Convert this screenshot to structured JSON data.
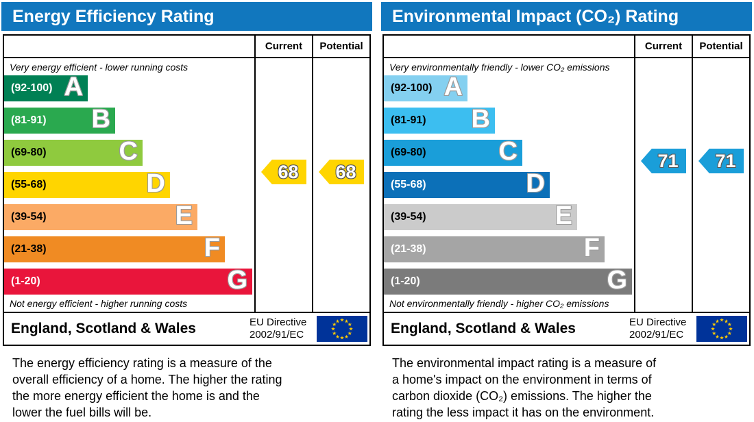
{
  "colors": {
    "header_blue": "#1177be",
    "eu_flag_blue": "#003399",
    "eu_star_yellow": "#ffcc00",
    "border_black": "#000000"
  },
  "panels": [
    {
      "title": "Energy Efficiency Rating",
      "header": {
        "current": "Current",
        "potential": "Potential"
      },
      "top_caption": "Very energy efficient - lower running costs",
      "bottom_caption": "Not energy efficient - higher running costs",
      "bands": [
        {
          "letter": "A",
          "label": "(92-100)",
          "lo": 92,
          "hi": 100,
          "color": "#008054",
          "text_color": "#ffffff"
        },
        {
          "letter": "B",
          "label": "(81-91)",
          "lo": 81,
          "hi": 91,
          "color": "#2aa94f",
          "text_color": "#ffffff"
        },
        {
          "letter": "C",
          "label": "(69-80)",
          "lo": 69,
          "hi": 80,
          "color": "#8fca3e",
          "text_color": "#000000"
        },
        {
          "letter": "D",
          "label": "(55-68)",
          "lo": 55,
          "hi": 68,
          "color": "#ffd500",
          "text_color": "#000000"
        },
        {
          "letter": "E",
          "label": "(39-54)",
          "lo": 39,
          "hi": 54,
          "color": "#fbaa65",
          "text_color": "#000000"
        },
        {
          "letter": "F",
          "label": "(21-38)",
          "lo": 21,
          "hi": 38,
          "color": "#f08b23",
          "text_color": "#000000"
        },
        {
          "letter": "G",
          "label": "(1-20)",
          "lo": 1,
          "hi": 20,
          "color": "#e9153b",
          "text_color": "#ffffff"
        }
      ],
      "current": {
        "value": 68,
        "color": "#ffd500"
      },
      "potential": {
        "value": 68,
        "color": "#ffd500"
      },
      "region": "England, Scotland & Wales",
      "directive_line1": "EU Directive",
      "directive_line2": "2002/91/EC",
      "description_lines": [
        "The energy efficiency rating is a measure of the",
        "overall efficiency of a home. The higher the rating",
        "the more energy efficient the home is and the",
        "lower the fuel bills will be."
      ]
    },
    {
      "title": "Environmental Impact (CO₂) Rating",
      "header": {
        "current": "Current",
        "potential": "Potential"
      },
      "top_caption": "Very environmentally friendly - lower CO₂ emissions",
      "bottom_caption": "Not environmentally friendly - higher CO₂ emissions",
      "bands": [
        {
          "letter": "A",
          "label": "(92-100)",
          "lo": 92,
          "hi": 100,
          "color": "#84d0f0",
          "text_color": "#000000"
        },
        {
          "letter": "B",
          "label": "(81-91)",
          "lo": 81,
          "hi": 91,
          "color": "#3cbef0",
          "text_color": "#000000"
        },
        {
          "letter": "C",
          "label": "(69-80)",
          "lo": 69,
          "hi": 80,
          "color": "#1a9ed9",
          "text_color": "#000000"
        },
        {
          "letter": "D",
          "label": "(55-68)",
          "lo": 55,
          "hi": 68,
          "color": "#0c70b8",
          "text_color": "#ffffff"
        },
        {
          "letter": "E",
          "label": "(39-54)",
          "lo": 39,
          "hi": 54,
          "color": "#cbcbcb",
          "text_color": "#000000"
        },
        {
          "letter": "F",
          "label": "(21-38)",
          "lo": 21,
          "hi": 38,
          "color": "#a5a5a5",
          "text_color": "#ffffff"
        },
        {
          "letter": "G",
          "label": "(1-20)",
          "lo": 1,
          "hi": 20,
          "color": "#7b7b7b",
          "text_color": "#ffffff"
        }
      ],
      "current": {
        "value": 71,
        "color": "#1a9ed9"
      },
      "potential": {
        "value": 71,
        "color": "#1a9ed9"
      },
      "region": "England, Scotland & Wales",
      "directive_line1": "EU Directive",
      "directive_line2": "2002/91/EC",
      "description_lines": [
        "The environmental impact rating is a measure of",
        "a home's impact on the environment in terms of",
        "carbon dioxide (CO₂) emissions. The higher the",
        "rating the less impact it has on the environment."
      ]
    }
  ],
  "chart_data": [
    {
      "type": "bar",
      "title": "Energy Efficiency Rating",
      "categories": [
        "A (92-100)",
        "B (81-91)",
        "C (69-80)",
        "D (55-68)",
        "E (39-54)",
        "F (21-38)",
        "G (1-20)"
      ],
      "band_ranges": [
        [
          92,
          100
        ],
        [
          81,
          91
        ],
        [
          69,
          80
        ],
        [
          55,
          68
        ],
        [
          39,
          54
        ],
        [
          21,
          38
        ],
        [
          1,
          20
        ]
      ],
      "current": 68,
      "potential": 68,
      "columns": [
        "Current",
        "Potential"
      ],
      "top_caption": "Very energy efficient - lower running costs",
      "bottom_caption": "Not energy efficient - higher running costs",
      "region": "England, Scotland & Wales",
      "directive": "EU Directive 2002/91/EC"
    },
    {
      "type": "bar",
      "title": "Environmental Impact (CO₂) Rating",
      "categories": [
        "A (92-100)",
        "B (81-91)",
        "C (69-80)",
        "D (55-68)",
        "E (39-54)",
        "F (21-38)",
        "G (1-20)"
      ],
      "band_ranges": [
        [
          92,
          100
        ],
        [
          81,
          91
        ],
        [
          69,
          80
        ],
        [
          55,
          68
        ],
        [
          39,
          54
        ],
        [
          21,
          38
        ],
        [
          1,
          20
        ]
      ],
      "current": 71,
      "potential": 71,
      "columns": [
        "Current",
        "Potential"
      ],
      "top_caption": "Very environmentally friendly - lower CO₂ emissions",
      "bottom_caption": "Not environmentally friendly - higher CO₂ emissions",
      "region": "England, Scotland & Wales",
      "directive": "EU Directive 2002/91/EC"
    }
  ]
}
